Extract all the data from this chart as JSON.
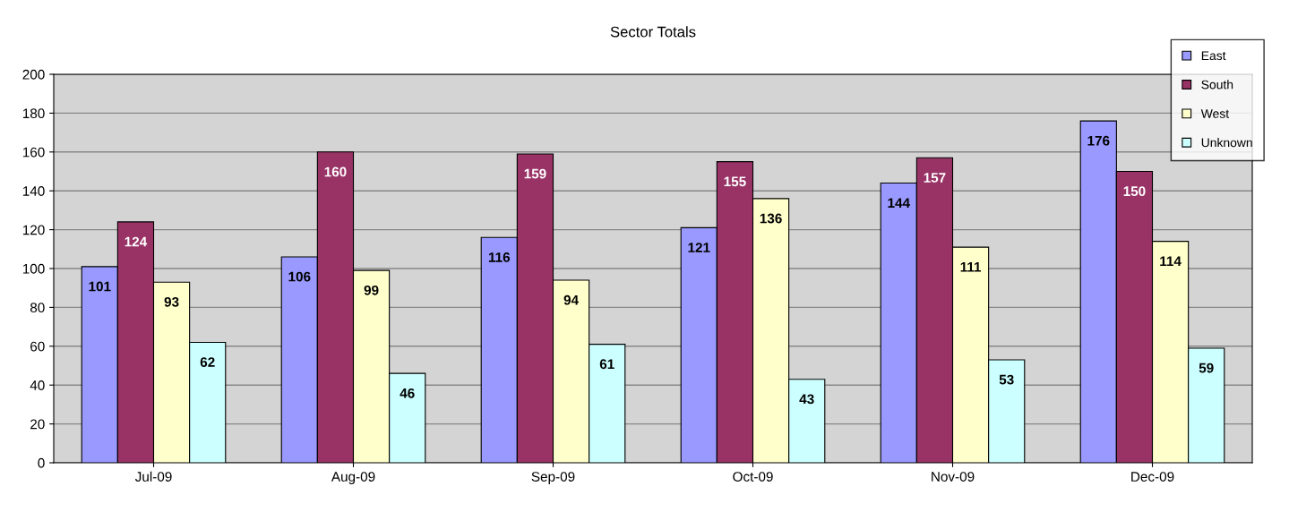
{
  "chart_data": {
    "type": "bar",
    "title": "Sector Totals",
    "categories": [
      "Jul-09",
      "Aug-09",
      "Sep-09",
      "Oct-09",
      "Nov-09",
      "Dec-09"
    ],
    "series": [
      {
        "name": "East",
        "color": "#9999ff",
        "values": [
          101,
          106,
          116,
          121,
          144,
          176
        ]
      },
      {
        "name": "South",
        "color": "#993366",
        "values": [
          124,
          160,
          159,
          155,
          157,
          150
        ]
      },
      {
        "name": "West",
        "color": "#ffffcc",
        "values": [
          93,
          99,
          94,
          136,
          111,
          114
        ]
      },
      {
        "name": "Unknown",
        "color": "#ccffff",
        "values": [
          62,
          46,
          61,
          43,
          53,
          59
        ]
      }
    ],
    "ylim": [
      0,
      200
    ],
    "yticks": [
      0,
      20,
      40,
      60,
      80,
      100,
      120,
      140,
      160,
      180,
      200
    ],
    "grid": "y",
    "legend": "top right",
    "data_labels": true
  }
}
